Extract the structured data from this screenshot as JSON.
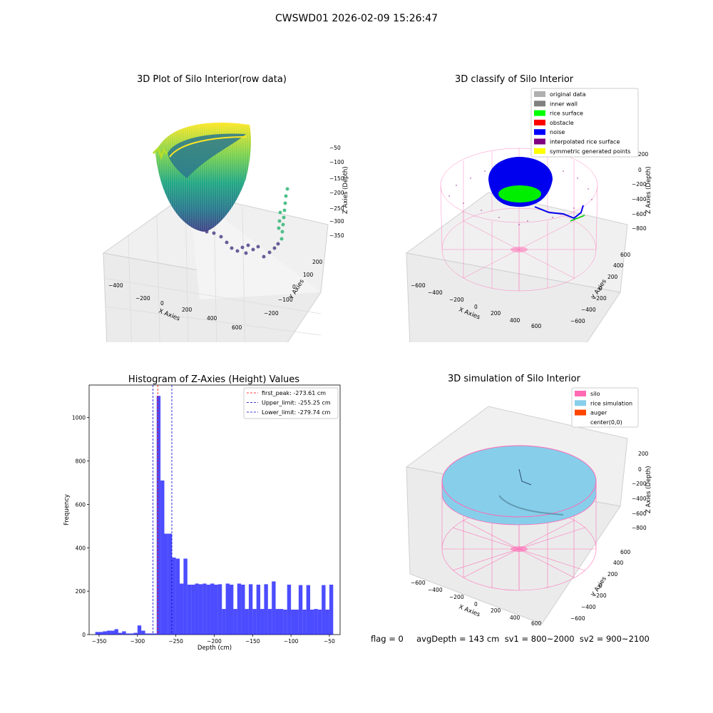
{
  "suptitle": "CWSWD01 2026-02-09 15:26:47",
  "status_text": "flag = 0     avgDepth = 143 cm  sv1 = 800~2000  sv2 = 900~2100",
  "panels": {
    "raw": {
      "title": "3D Plot of Silo Interior(row data)",
      "xlabel": "X Axies",
      "ylabel": "Y Axies",
      "zlabel": "Z Axies (Depth)",
      "xticks": [
        "−400",
        "−200",
        "0",
        "200",
        "400",
        "600"
      ],
      "yticks": [
        "−200",
        "−100",
        "0",
        "100",
        "200"
      ],
      "zticks": [
        "−50",
        "−100",
        "−150",
        "−200",
        "−250",
        "−300",
        "−350"
      ],
      "colormap": "viridis"
    },
    "classify": {
      "title": "3D classify of Silo Interior",
      "xlabel": "X Axies",
      "ylabel": "Y Axies",
      "zlabel": "Z Axies (Depth)",
      "xticks": [
        "−600",
        "−400",
        "−200",
        "0",
        "200",
        "400",
        "600"
      ],
      "yticks": [
        "−600",
        "−400",
        "−200",
        "0",
        "200",
        "400",
        "600"
      ],
      "zticks": [
        "200",
        "0",
        "−200",
        "−400",
        "−600",
        "−800"
      ],
      "legend": [
        {
          "label": "original data",
          "color": "#b0b0b0"
        },
        {
          "label": "inner wall",
          "color": "#808080"
        },
        {
          "label": "rice surface",
          "color": "#00ff00"
        },
        {
          "label": "obstacle",
          "color": "#ff0000"
        },
        {
          "label": "noise",
          "color": "#0000ff"
        },
        {
          "label": "interpolated rice surface",
          "color": "#800080"
        },
        {
          "label": "symmetric generated points",
          "color": "#ffff00"
        }
      ]
    },
    "simulation": {
      "title": "3D simulation of Silo Interior",
      "xlabel": "X Axies",
      "ylabel": "Y Axies",
      "zlabel": "Z Axies (Depth)",
      "xticks": [
        "−600",
        "−400",
        "−200",
        "0",
        "200",
        "400",
        "600"
      ],
      "yticks": [
        "−600",
        "−400",
        "−200",
        "0",
        "200",
        "400",
        "600"
      ],
      "zticks": [
        "200",
        "0",
        "−200",
        "−400",
        "−600",
        "−800"
      ],
      "legend": [
        {
          "label": "silo",
          "color": "#ff69b4"
        },
        {
          "label": "rice simulation",
          "color": "#87ceeb"
        },
        {
          "label": "auger",
          "color": "#ff4500"
        },
        {
          "label": "center(0,0)",
          "color": "#ffffff"
        }
      ]
    }
  },
  "chart_data": {
    "type": "bar",
    "title": "Histogram of Z-Axies (Height) Values",
    "xlabel": "Depth (cm)",
    "ylabel": "Frequency",
    "xlim": [
      -363,
      -36
    ],
    "ylim": [
      0,
      1150
    ],
    "xticks": [
      -350,
      -300,
      -250,
      -200,
      -150,
      -100,
      -50
    ],
    "yticks": [
      0,
      200,
      400,
      600,
      800,
      1000
    ],
    "bar_color": "#0000ff",
    "bin_width": 5,
    "bins": [
      {
        "x0": -355,
        "value": 12
      },
      {
        "x0": -350,
        "value": 12
      },
      {
        "x0": -345,
        "value": 15
      },
      {
        "x0": -340,
        "value": 18
      },
      {
        "x0": -335,
        "value": 18
      },
      {
        "x0": -330,
        "value": 25
      },
      {
        "x0": -325,
        "value": 8
      },
      {
        "x0": -320,
        "value": 15
      },
      {
        "x0": -315,
        "value": 5
      },
      {
        "x0": -310,
        "value": 5
      },
      {
        "x0": -305,
        "value": 8
      },
      {
        "x0": -300,
        "value": 42
      },
      {
        "x0": -295,
        "value": 18
      },
      {
        "x0": -290,
        "value": 5
      },
      {
        "x0": -285,
        "value": 5
      },
      {
        "x0": -280,
        "value": 5
      },
      {
        "x0": -275,
        "value": 1100
      },
      {
        "x0": -270,
        "value": 710
      },
      {
        "x0": -265,
        "value": 465
      },
      {
        "x0": -260,
        "value": 465
      },
      {
        "x0": -255,
        "value": 355
      },
      {
        "x0": -250,
        "value": 350
      },
      {
        "x0": -245,
        "value": 235
      },
      {
        "x0": -240,
        "value": 350
      },
      {
        "x0": -235,
        "value": 230
      },
      {
        "x0": -230,
        "value": 230
      },
      {
        "x0": -225,
        "value": 235
      },
      {
        "x0": -220,
        "value": 232
      },
      {
        "x0": -215,
        "value": 235
      },
      {
        "x0": -210,
        "value": 230
      },
      {
        "x0": -205,
        "value": 235
      },
      {
        "x0": -200,
        "value": 230
      },
      {
        "x0": -195,
        "value": 232
      },
      {
        "x0": -190,
        "value": 118
      },
      {
        "x0": -185,
        "value": 235
      },
      {
        "x0": -180,
        "value": 230
      },
      {
        "x0": -175,
        "value": 118
      },
      {
        "x0": -170,
        "value": 235
      },
      {
        "x0": -165,
        "value": 230
      },
      {
        "x0": -160,
        "value": 118
      },
      {
        "x0": -155,
        "value": 232
      },
      {
        "x0": -150,
        "value": 118
      },
      {
        "x0": -145,
        "value": 230
      },
      {
        "x0": -140,
        "value": 118
      },
      {
        "x0": -135,
        "value": 232
      },
      {
        "x0": -130,
        "value": 118
      },
      {
        "x0": -125,
        "value": 245
      },
      {
        "x0": -120,
        "value": 118
      },
      {
        "x0": -115,
        "value": 118
      },
      {
        "x0": -110,
        "value": 115
      },
      {
        "x0": -105,
        "value": 230
      },
      {
        "x0": -100,
        "value": 115
      },
      {
        "x0": -95,
        "value": 115
      },
      {
        "x0": -90,
        "value": 228
      },
      {
        "x0": -85,
        "value": 115
      },
      {
        "x0": -80,
        "value": 228
      },
      {
        "x0": -75,
        "value": 115
      },
      {
        "x0": -70,
        "value": 118
      },
      {
        "x0": -65,
        "value": 115
      },
      {
        "x0": -60,
        "value": 228
      },
      {
        "x0": -55,
        "value": 115
      },
      {
        "x0": -50,
        "value": 230
      }
    ],
    "vlines": [
      {
        "label": "first_peak: -273.61 cm",
        "x": -273.61,
        "color": "#ff0000"
      },
      {
        "label": "Upper_limit: -255.25 cm",
        "x": -255.25,
        "color": "#0000cc"
      },
      {
        "label": "Lower_limit: -279.74 cm",
        "x": -279.74,
        "color": "#0000cc"
      }
    ],
    "legend_position": "top-right"
  }
}
